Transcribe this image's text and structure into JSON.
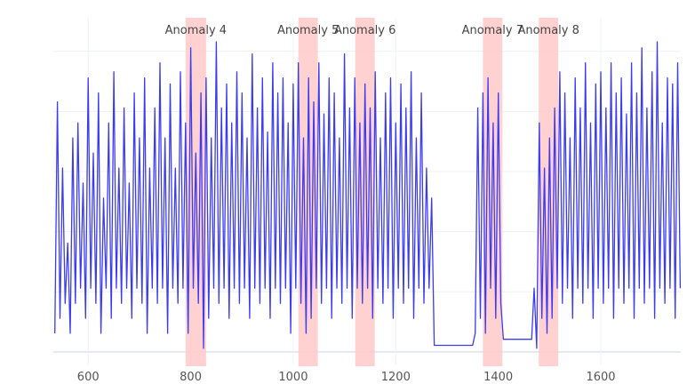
{
  "chart_data": {
    "type": "line",
    "title": "",
    "xlabel": "",
    "ylabel": "",
    "xlim": [
      532,
      1756
    ],
    "ylim": [
      -0.03,
      1.1
    ],
    "grid": true,
    "x_ticks": [
      600,
      800,
      1000,
      1200,
      1400,
      1600
    ],
    "x_tick_labels": [
      "600",
      "800",
      "1000",
      "1200",
      "1400",
      "1600"
    ],
    "line_color": "#3b3bf0",
    "anomaly_color": "#ffc9c9",
    "anomalies": [
      {
        "label": "Anomaly 4",
        "x0": 790,
        "x1": 830
      },
      {
        "label": "Anomaly 5",
        "x0": 1010,
        "x1": 1048
      },
      {
        "label": "Anomaly 6",
        "x0": 1121,
        "x1": 1159
      },
      {
        "label": "Anomaly 7",
        "x0": 1370,
        "x1": 1408
      },
      {
        "label": "Anomaly 8",
        "x0": 1479,
        "x1": 1517
      }
    ],
    "series": [
      {
        "x": [
          535,
          540,
          545,
          550,
          555,
          560,
          565,
          570,
          575,
          580,
          585,
          590,
          595,
          600,
          605,
          610,
          615,
          620,
          625,
          630,
          635,
          640,
          645,
          650,
          655,
          660,
          665,
          670,
          675,
          680,
          685,
          690,
          695,
          700,
          705,
          710,
          715,
          720,
          725,
          730,
          735,
          740,
          745,
          750,
          755,
          760,
          765,
          770,
          775,
          780,
          785,
          790,
          795,
          800,
          805,
          810,
          815,
          820,
          825,
          830,
          835,
          840,
          845,
          850,
          855,
          860,
          865,
          870,
          875,
          880,
          885,
          890,
          895,
          900,
          905,
          910,
          915,
          920,
          925,
          930,
          935,
          940,
          945,
          950,
          955,
          960,
          965,
          970,
          975,
          980,
          985,
          990,
          995,
          1000,
          1005,
          1010,
          1015,
          1020,
          1025,
          1030,
          1035,
          1040,
          1045,
          1050,
          1055,
          1060,
          1065,
          1070,
          1075,
          1080,
          1085,
          1090,
          1095,
          1100,
          1105,
          1110,
          1115,
          1120,
          1125,
          1130,
          1135,
          1140,
          1145,
          1150,
          1155,
          1160,
          1165,
          1170,
          1175,
          1180,
          1185,
          1190,
          1195,
          1200,
          1205,
          1210,
          1215,
          1220,
          1225,
          1230,
          1235,
          1240,
          1245,
          1250,
          1255,
          1260,
          1265,
          1270,
          1275,
          1280,
          1285,
          1290,
          1295,
          1300,
          1305,
          1310,
          1315,
          1320,
          1325,
          1330,
          1335,
          1340,
          1345,
          1350,
          1355,
          1360,
          1365,
          1370,
          1375,
          1380,
          1385,
          1390,
          1395,
          1400,
          1405,
          1410,
          1415,
          1420,
          1425,
          1430,
          1435,
          1440,
          1445,
          1450,
          1455,
          1460,
          1465,
          1470,
          1475,
          1480,
          1485,
          1490,
          1495,
          1500,
          1505,
          1510,
          1515,
          1520,
          1525,
          1530,
          1535,
          1540,
          1545,
          1550,
          1555,
          1560,
          1565,
          1570,
          1575,
          1580,
          1585,
          1590,
          1595,
          1600,
          1605,
          1610,
          1615,
          1620,
          1625,
          1630,
          1635,
          1640,
          1645,
          1650,
          1655,
          1660,
          1665,
          1670,
          1675,
          1680,
          1685,
          1690,
          1695,
          1700,
          1705,
          1710,
          1715,
          1720,
          1725,
          1730,
          1735,
          1740,
          1745,
          1750,
          1755
        ],
        "y": [
          0.05,
          0.82,
          0.1,
          0.6,
          0.15,
          0.35,
          0.05,
          0.7,
          0.15,
          0.75,
          0.2,
          0.55,
          0.1,
          0.9,
          0.2,
          0.65,
          0.15,
          0.85,
          0.05,
          0.5,
          0.2,
          0.75,
          0.1,
          0.92,
          0.2,
          0.6,
          0.15,
          0.8,
          0.2,
          0.55,
          0.1,
          0.85,
          0.2,
          0.7,
          0.15,
          0.9,
          0.05,
          0.6,
          0.2,
          0.8,
          0.15,
          0.95,
          0.2,
          0.7,
          0.05,
          0.88,
          0.2,
          0.6,
          0.15,
          0.92,
          0.2,
          0.75,
          0.05,
          1.0,
          0.2,
          0.65,
          0.15,
          0.85,
          0.0,
          0.9,
          0.1,
          0.7,
          0.2,
          1.02,
          0.15,
          0.8,
          0.2,
          0.88,
          0.1,
          0.75,
          0.2,
          0.92,
          0.15,
          0.85,
          0.2,
          0.7,
          0.1,
          0.98,
          0.2,
          0.8,
          0.15,
          0.9,
          0.2,
          0.72,
          0.1,
          0.95,
          0.2,
          0.85,
          0.15,
          0.9,
          0.2,
          0.75,
          0.05,
          0.88,
          0.2,
          0.95,
          0.15,
          0.7,
          0.05,
          0.9,
          0.1,
          0.82,
          0.2,
          0.95,
          0.15,
          0.78,
          0.2,
          0.9,
          0.1,
          0.85,
          0.2,
          0.7,
          0.15,
          0.98,
          0.2,
          0.8,
          0.1,
          0.9,
          0.2,
          0.75,
          0.15,
          0.88,
          0.2,
          0.8,
          0.1,
          0.92,
          0.2,
          0.7,
          0.15,
          0.85,
          0.2,
          0.9,
          0.1,
          0.75,
          0.2,
          0.88,
          0.15,
          0.8,
          0.2,
          0.92,
          0.1,
          0.7,
          0.2,
          0.85,
          0.15,
          0.6,
          0.2,
          0.5,
          0.01,
          0.01,
          0.01,
          0.01,
          0.01,
          0.01,
          0.01,
          0.01,
          0.01,
          0.01,
          0.01,
          0.01,
          0.01,
          0.01,
          0.01,
          0.01,
          0.05,
          0.8,
          0.1,
          0.85,
          0.05,
          0.9,
          0.2,
          0.75,
          0.1,
          0.85,
          0.15,
          0.03,
          0.03,
          0.03,
          0.03,
          0.03,
          0.03,
          0.03,
          0.03,
          0.03,
          0.03,
          0.03,
          0.03,
          0.2,
          0.0,
          0.75,
          0.1,
          0.6,
          0.05,
          0.7,
          0.1,
          0.8,
          0.2,
          0.92,
          0.15,
          0.85,
          0.2,
          0.7,
          0.1,
          0.9,
          0.2,
          0.8,
          0.15,
          0.95,
          0.2,
          0.75,
          0.1,
          0.88,
          0.2,
          0.92,
          0.15,
          0.8,
          0.2,
          0.95,
          0.1,
          0.85,
          0.2,
          0.9,
          0.15,
          0.78,
          0.2,
          0.95,
          0.1,
          0.85,
          0.2,
          1.0,
          0.15,
          0.8,
          0.2,
          0.92,
          0.1,
          1.02,
          0.2,
          0.75,
          0.15,
          0.9,
          0.2,
          0.88,
          0.1,
          0.95,
          0.2
        ]
      }
    ]
  }
}
